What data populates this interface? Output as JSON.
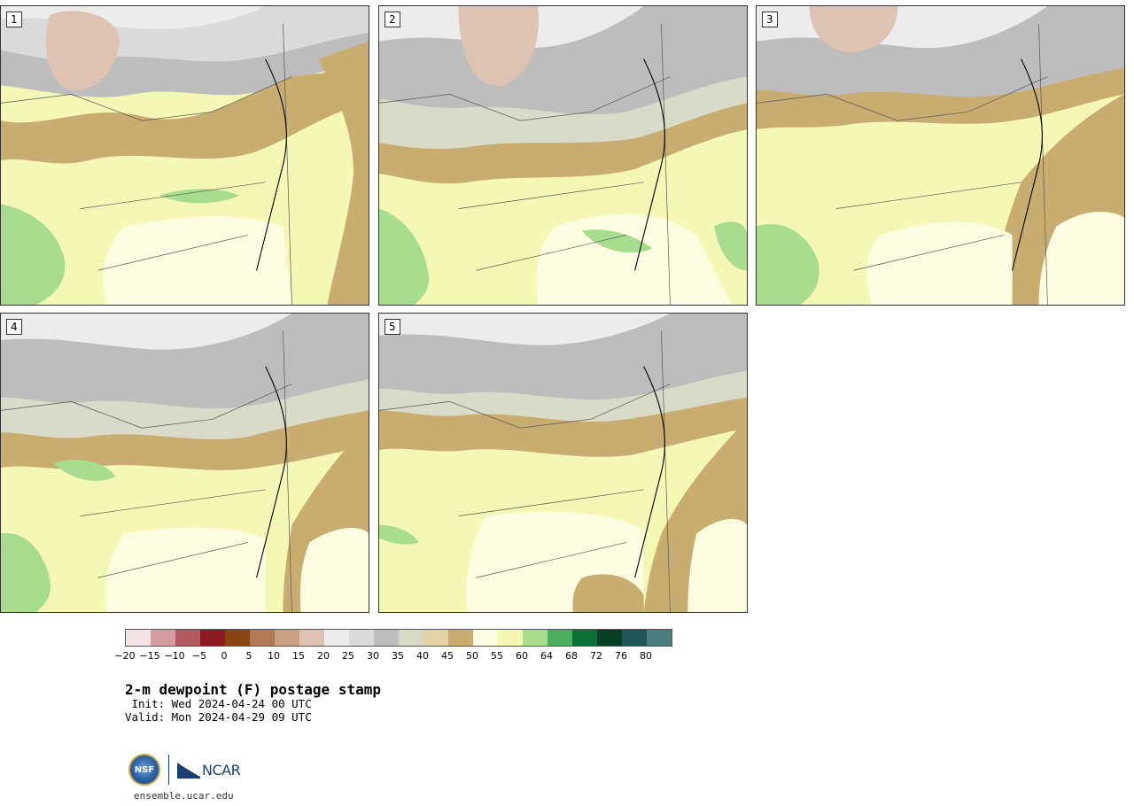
{
  "panels": [
    {
      "label": "1"
    },
    {
      "label": "2"
    },
    {
      "label": "3"
    },
    {
      "label": "4"
    },
    {
      "label": "5"
    }
  ],
  "colorbar": {
    "colors": [
      "#f2e4e4",
      "#d49ea0",
      "#b15a5f",
      "#8b1a22",
      "#8b4513",
      "#b07a56",
      "#c99f84",
      "#dec2b2",
      "#ececec",
      "#dadada",
      "#bdbdbd",
      "#d9dbc9",
      "#e3d2a5",
      "#c9ad70",
      "#fdfce0",
      "#f4f8b4",
      "#a8dc8e",
      "#4cad5c",
      "#0b7136",
      "#083f24",
      "#1e5656",
      "#4c7d7f"
    ],
    "ticks": [
      "−20",
      "−15",
      "−10",
      "−5",
      "0",
      "5",
      "10",
      "15",
      "20",
      "25",
      "30",
      "35",
      "40",
      "45",
      "50",
      "55",
      "60",
      "64",
      "68",
      "72",
      "76",
      "80"
    ]
  },
  "title": "2-m dewpoint (F) postage stamp",
  "init_line": " Init: Wed 2024-04-24 00 UTC",
  "valid_line": "Valid: Mon 2024-04-29 09 UTC",
  "logos": {
    "nsf": "NSF",
    "ncar": "NCAR",
    "icons": [
      "nsf-logo-icon",
      "ncar-logo-icon"
    ]
  },
  "footer_url": "ensemble.ucar.edu"
}
